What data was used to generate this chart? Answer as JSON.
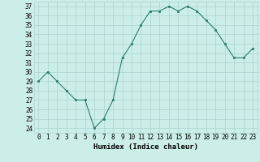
{
  "x": [
    0,
    1,
    2,
    3,
    4,
    5,
    6,
    7,
    8,
    9,
    10,
    11,
    12,
    13,
    14,
    15,
    16,
    17,
    18,
    19,
    20,
    21,
    22,
    23
  ],
  "y": [
    29,
    30,
    29,
    28,
    27,
    27,
    24,
    25,
    27,
    31.5,
    33,
    35,
    36.5,
    36.5,
    37,
    36.5,
    37,
    36.5,
    35.5,
    34.5,
    33,
    31.5,
    31.5,
    32.5
  ],
  "xlabel": "Humidex (Indice chaleur)",
  "xlim": [
    -0.5,
    23.5
  ],
  "ylim": [
    23.5,
    37.5
  ],
  "yticks": [
    24,
    25,
    26,
    27,
    28,
    29,
    30,
    31,
    32,
    33,
    34,
    35,
    36,
    37
  ],
  "xticks": [
    0,
    1,
    2,
    3,
    4,
    5,
    6,
    7,
    8,
    9,
    10,
    11,
    12,
    13,
    14,
    15,
    16,
    17,
    18,
    19,
    20,
    21,
    22,
    23
  ],
  "line_color": "#2d7d70",
  "marker_color": "#2d7d70",
  "bg_color": "#cceee8",
  "grid_color": "#aad4ce",
  "label_fontsize": 6.5,
  "tick_fontsize": 5.5
}
